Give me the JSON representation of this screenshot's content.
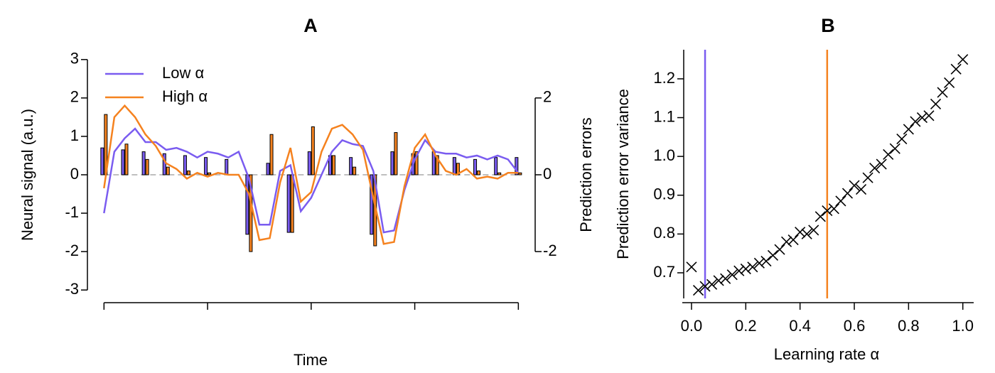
{
  "chart_data": [
    {
      "type": "line",
      "title": "A",
      "xlabel": "Time",
      "ylabel": "Neural signal (a.u.)",
      "y2label": "Prediction errors",
      "xlim": [
        -0.8,
        20.4
      ],
      "xticks": [
        0,
        5,
        10,
        15,
        20
      ],
      "ylim": [
        -3.2,
        3.2
      ],
      "yticks": [
        -3,
        -2,
        -1,
        0,
        1,
        2,
        3
      ],
      "y2lim": [
        -3.2,
        3.2
      ],
      "y2ticks": [
        -2,
        0,
        2
      ],
      "legend": "upper-left",
      "zero_line": true,
      "x": [
        0,
        0.5,
        1,
        1.5,
        2,
        2.5,
        3,
        3.5,
        4,
        4.5,
        5,
        5.5,
        6,
        6.5,
        7,
        7.5,
        8,
        8.5,
        9,
        9.5,
        10,
        10.5,
        11,
        11.5,
        12,
        12.5,
        13,
        13.5,
        14,
        14.5,
        15,
        15.5,
        16,
        16.5,
        17,
        17.5,
        18,
        18.5,
        19,
        19.5,
        20
      ],
      "series": [
        {
          "name": "Low α",
          "type": "line",
          "color": "#7a5cf0",
          "values": [
            -1.0,
            0.6,
            0.95,
            1.2,
            0.85,
            0.85,
            0.65,
            0.7,
            0.6,
            0.45,
            0.6,
            0.55,
            0.45,
            0.6,
            -0.1,
            -1.3,
            -1.3,
            0.1,
            0.25,
            -0.95,
            -0.6,
            0.0,
            0.6,
            0.9,
            0.8,
            0.75,
            0.1,
            -1.5,
            -1.45,
            -0.4,
            0.4,
            0.9,
            0.6,
            0.55,
            0.55,
            0.45,
            0.5,
            0.4,
            0.5,
            0.4,
            0.05
          ]
        },
        {
          "name": "High α",
          "type": "line",
          "color": "#f5821f",
          "values": [
            -0.35,
            1.5,
            1.8,
            1.5,
            1.05,
            0.75,
            0.3,
            0.15,
            -0.1,
            0.05,
            -0.05,
            0.05,
            0.0,
            0.0,
            -0.5,
            -1.7,
            -1.65,
            -0.2,
            0.7,
            -0.7,
            -0.45,
            0.6,
            1.2,
            1.3,
            1.05,
            0.65,
            -0.6,
            -1.8,
            -1.75,
            -0.3,
            0.7,
            1.05,
            0.5,
            0.1,
            0.0,
            0.15,
            -0.1,
            -0.05,
            -0.1,
            0.05,
            0.05
          ]
        },
        {
          "type": "bar",
          "axis": "y2",
          "color": "#7a5cf0",
          "x": [
            0,
            1,
            2,
            3,
            4,
            5,
            6,
            7,
            8,
            9,
            10,
            11,
            12,
            13,
            14,
            15,
            16,
            17,
            18,
            19,
            20
          ],
          "values": [
            0.7,
            0.65,
            0.6,
            0.55,
            0.5,
            0.45,
            0.4,
            -1.55,
            0.3,
            -1.5,
            0.6,
            0.5,
            0.45,
            -1.55,
            0.6,
            0.55,
            0.6,
            0.45,
            0.4,
            0.45,
            0.45
          ]
        },
        {
          "type": "bar",
          "axis": "y2",
          "color": "#f5821f",
          "x": [
            0,
            1,
            2,
            3,
            4,
            5,
            6,
            7,
            8,
            9,
            10,
            11,
            12,
            13,
            14,
            15,
            16,
            17,
            18,
            19,
            20
          ],
          "values": [
            1.57,
            0.8,
            0.4,
            0.2,
            0.1,
            0.05,
            0.0,
            -2.0,
            1.05,
            -1.5,
            1.25,
            0.5,
            0.2,
            -1.85,
            1.1,
            0.6,
            0.5,
            0.3,
            0.1,
            0.05,
            0.05
          ]
        }
      ]
    },
    {
      "type": "scatter",
      "title": "B",
      "xlabel": "Learning rate α",
      "ylabel": "Prediction error variance",
      "xlim": [
        -0.034,
        1.04
      ],
      "xticks": [
        {
          "value": 0,
          "label": "0.0"
        },
        0.2,
        0.4,
        0.6,
        0.8,
        {
          "value": 1,
          "label": "1.0"
        }
      ],
      "ylim": [
        0.634,
        1.275
      ],
      "yticks": [
        0.7,
        0.8,
        0.9,
        {
          "value": 1,
          "label": "1.0"
        },
        1.1,
        1.2
      ],
      "vlines": [
        {
          "x": 0.05,
          "color": "#7a5cf0"
        },
        {
          "x": 0.5,
          "color": "#f5821f"
        }
      ],
      "series": [
        {
          "color": "#000000",
          "x": [
            0,
            0.025,
            0.05,
            0.075,
            0.1,
            0.125,
            0.15,
            0.175,
            0.2,
            0.225,
            0.25,
            0.275,
            0.3,
            0.325,
            0.35,
            0.375,
            0.4,
            0.425,
            0.45,
            0.475,
            0.5,
            0.525,
            0.55,
            0.575,
            0.6,
            0.625,
            0.65,
            0.675,
            0.7,
            0.725,
            0.75,
            0.775,
            0.8,
            0.825,
            0.85,
            0.875,
            0.9,
            0.925,
            0.95,
            0.975,
            1.0
          ],
          "values": [
            0.715,
            0.655,
            0.665,
            0.67,
            0.68,
            0.685,
            0.695,
            0.705,
            0.71,
            0.715,
            0.725,
            0.73,
            0.745,
            0.76,
            0.78,
            0.785,
            0.805,
            0.8,
            0.81,
            0.845,
            0.86,
            0.865,
            0.885,
            0.905,
            0.925,
            0.915,
            0.945,
            0.97,
            0.98,
            1.005,
            1.02,
            1.045,
            1.07,
            1.09,
            1.1,
            1.105,
            1.135,
            1.165,
            1.19,
            1.225,
            1.25
          ]
        }
      ]
    }
  ]
}
